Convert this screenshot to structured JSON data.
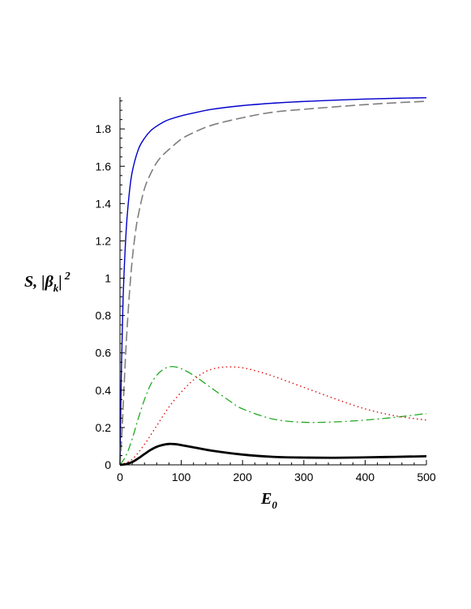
{
  "chart_data": {
    "type": "line",
    "title": "",
    "xlabel": "E",
    "xlabel_sub": "0",
    "ylabel": "S, |β",
    "ylabel_sub": "k",
    "ylabel_tail": "|",
    "ylabel_sup": "2",
    "xlim": [
      0,
      500
    ],
    "ylim": [
      0,
      1.97
    ],
    "xticks": [
      "0",
      "100",
      "200",
      "300",
      "400",
      "500"
    ],
    "yticks": [
      "0",
      "0.2",
      "0.4",
      "0.6",
      "0.8",
      "1",
      "1.2",
      "1.4",
      "1.6",
      "1.8"
    ],
    "grid": false,
    "legend": "none",
    "series": [
      {
        "color": "#0000cc",
        "style": "solid",
        "x": [
          0,
          2,
          5,
          10,
          15,
          20,
          30,
          40,
          50,
          60,
          70,
          80,
          100,
          120,
          150,
          200,
          250,
          300,
          350,
          400,
          450,
          500
        ],
        "y": [
          0,
          0.45,
          0.88,
          1.25,
          1.45,
          1.57,
          1.69,
          1.75,
          1.79,
          1.815,
          1.835,
          1.85,
          1.87,
          1.885,
          1.905,
          1.925,
          1.938,
          1.947,
          1.954,
          1.96,
          1.964,
          1.967
        ]
      },
      {
        "color": "#7f7f7f",
        "style": "dashed",
        "x": [
          0,
          3,
          6,
          10,
          15,
          20,
          25,
          30,
          40,
          50,
          60,
          70,
          80,
          100,
          120,
          150,
          200,
          250,
          300,
          350,
          400,
          450,
          500
        ],
        "y": [
          0,
          0.16,
          0.37,
          0.64,
          0.9,
          1.1,
          1.24,
          1.34,
          1.48,
          1.56,
          1.62,
          1.66,
          1.69,
          1.745,
          1.78,
          1.82,
          1.86,
          1.89,
          1.905,
          1.918,
          1.93,
          1.94,
          1.948
        ]
      },
      {
        "color": "#22aa22",
        "style": "dashdot",
        "x": [
          0,
          10,
          20,
          30,
          40,
          50,
          60,
          70,
          80,
          90,
          100,
          120,
          150,
          180,
          200,
          250,
          300,
          350,
          400,
          450,
          500
        ],
        "y": [
          0,
          0.05,
          0.14,
          0.25,
          0.35,
          0.43,
          0.48,
          0.51,
          0.525,
          0.525,
          0.515,
          0.48,
          0.41,
          0.34,
          0.3,
          0.245,
          0.228,
          0.23,
          0.24,
          0.255,
          0.275
        ]
      },
      {
        "color": "#e01010",
        "style": "dotted",
        "x": [
          0,
          20,
          40,
          60,
          80,
          100,
          120,
          140,
          160,
          180,
          200,
          220,
          250,
          300,
          350,
          400,
          450,
          500
        ],
        "y": [
          0,
          0.03,
          0.11,
          0.21,
          0.31,
          0.39,
          0.455,
          0.5,
          0.52,
          0.525,
          0.52,
          0.505,
          0.475,
          0.415,
          0.355,
          0.3,
          0.262,
          0.24
        ]
      },
      {
        "color": "#000000",
        "style": "thick",
        "x": [
          0,
          10,
          20,
          30,
          40,
          50,
          60,
          70,
          80,
          90,
          100,
          120,
          150,
          200,
          250,
          300,
          350,
          400,
          450,
          500
        ],
        "y": [
          0,
          0.004,
          0.015,
          0.035,
          0.058,
          0.08,
          0.097,
          0.107,
          0.112,
          0.111,
          0.106,
          0.094,
          0.076,
          0.055,
          0.043,
          0.039,
          0.038,
          0.04,
          0.043,
          0.046
        ]
      }
    ]
  }
}
